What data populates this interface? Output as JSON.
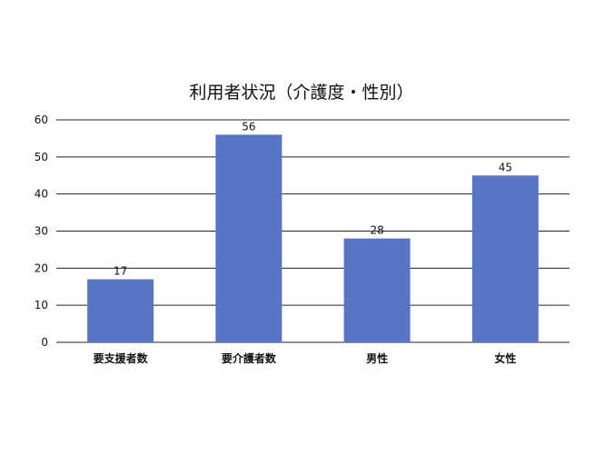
{
  "chart_data": {
    "type": "bar",
    "title": "利用者状況（介護度・性別）",
    "categories": [
      "要支援者数",
      "要介護者数",
      "男性",
      "女性"
    ],
    "values": [
      17,
      56,
      28,
      45
    ],
    "xlabel": "",
    "ylabel": "",
    "ylim": [
      0,
      60
    ],
    "yticks": [
      0,
      10,
      20,
      30,
      40,
      50,
      60
    ],
    "grid": true,
    "data_labels": true,
    "bar_color": "#5874C4"
  }
}
